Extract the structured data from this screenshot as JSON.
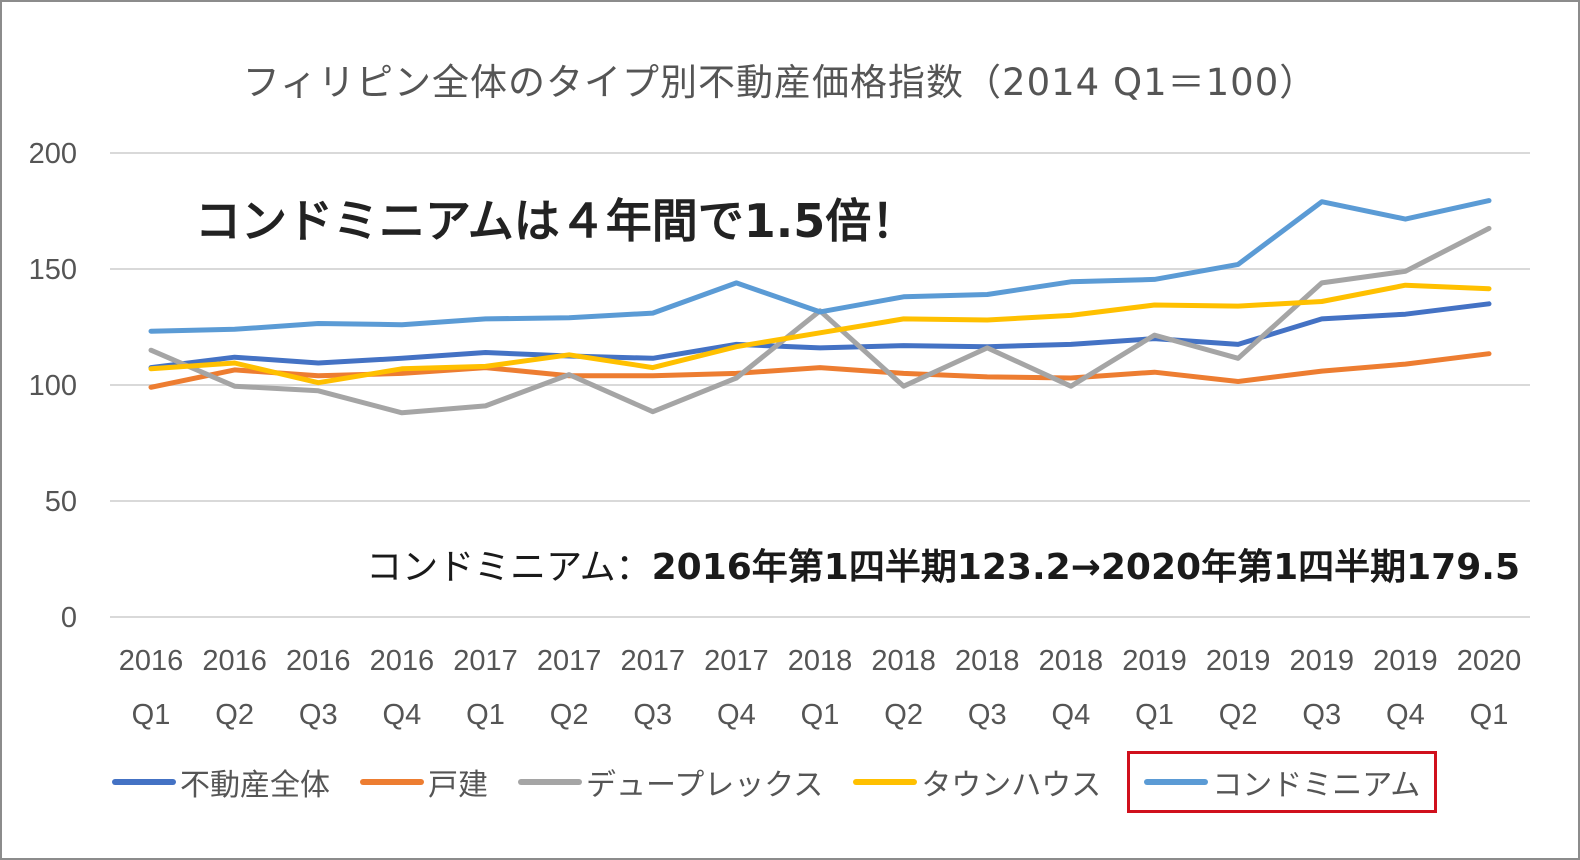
{
  "chart_data": {
    "type": "line",
    "title": "フィリピン全体のタイプ別不動産価格指数（2014 Q1＝100）",
    "xlabel": "",
    "ylabel": "",
    "ylim": [
      0,
      200
    ],
    "yticks": [
      "0",
      "50",
      "100",
      "150",
      "200"
    ],
    "grid": true,
    "legend_position": "bottom",
    "categories": [
      {
        "year": "2016",
        "quarter": "Q1"
      },
      {
        "year": "2016",
        "quarter": "Q2"
      },
      {
        "year": "2016",
        "quarter": "Q3"
      },
      {
        "year": "2016",
        "quarter": "Q4"
      },
      {
        "year": "2017",
        "quarter": "Q1"
      },
      {
        "year": "2017",
        "quarter": "Q2"
      },
      {
        "year": "2017",
        "quarter": "Q3"
      },
      {
        "year": "2017",
        "quarter": "Q4"
      },
      {
        "year": "2018",
        "quarter": "Q1"
      },
      {
        "year": "2018",
        "quarter": "Q2"
      },
      {
        "year": "2018",
        "quarter": "Q3"
      },
      {
        "year": "2018",
        "quarter": "Q4"
      },
      {
        "year": "2019",
        "quarter": "Q1"
      },
      {
        "year": "2019",
        "quarter": "Q2"
      },
      {
        "year": "2019",
        "quarter": "Q3"
      },
      {
        "year": "2019",
        "quarter": "Q4"
      },
      {
        "year": "2020",
        "quarter": "Q1"
      }
    ],
    "series": [
      {
        "name": "不動産全体",
        "color": "#4472c4",
        "values": [
          107.5,
          112.0,
          109.5,
          111.5,
          114.0,
          112.5,
          111.5,
          117.5,
          116.0,
          117.0,
          116.5,
          117.5,
          120.0,
          117.5,
          128.5,
          130.5,
          135.0
        ]
      },
      {
        "name": "戸建",
        "color": "#ed7d31",
        "values": [
          99.0,
          106.5,
          104.0,
          105.0,
          107.5,
          104.0,
          104.0,
          105.0,
          107.5,
          105.0,
          103.5,
          103.0,
          105.5,
          101.5,
          106.0,
          109.0,
          113.5
        ]
      },
      {
        "name": "デュープレックス",
        "color": "#a5a5a5",
        "values": [
          115.0,
          99.5,
          97.5,
          88.0,
          91.0,
          104.5,
          88.5,
          103.0,
          132.0,
          99.5,
          116.0,
          99.5,
          121.5,
          111.5,
          144.0,
          149.0,
          167.5
        ]
      },
      {
        "name": "タウンハウス",
        "color": "#ffc000",
        "values": [
          107.0,
          109.5,
          101.0,
          107.0,
          108.0,
          113.0,
          107.5,
          116.5,
          122.5,
          128.5,
          128.0,
          130.0,
          134.5,
          134.0,
          136.0,
          143.0,
          141.5
        ]
      },
      {
        "name": "コンドミニアム",
        "color": "#5b9bd5",
        "values": [
          123.2,
          124.0,
          126.5,
          126.0,
          128.5,
          129.0,
          131.0,
          144.0,
          131.5,
          138.0,
          139.0,
          144.5,
          145.5,
          152.0,
          179.0,
          171.5,
          179.5
        ]
      }
    ],
    "highlighted_legend": "コンドミニアム"
  },
  "annotations": {
    "callout": "コンドミニアムは４年間で1.5倍！",
    "note_prefix": "コンドミニアム：",
    "note_value": "2016年第1四半期123.2→2020年第1四半期179.5"
  }
}
